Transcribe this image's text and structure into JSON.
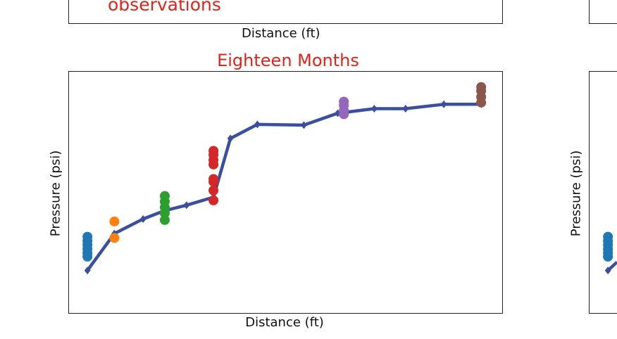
{
  "top_left_panel": {
    "annotation": "observations",
    "xlabel": "Distance (ft)"
  },
  "right_panel": {
    "ylabel": "Pressure (psi)"
  },
  "colors": {
    "model_line": "#3a4fa0",
    "observation_groups": [
      "#1f77b4",
      "#ff7f0e",
      "#2ca02c",
      "#d62728",
      "#9467bd",
      "#8c564b"
    ],
    "title": "#e2231a"
  },
  "chart_data": {
    "type": "line",
    "title": "Eighteen Months",
    "xlabel": "Distance (ft)",
    "ylabel": "Pressure (psi)",
    "xlim": [
      0,
      100
    ],
    "ylim": [
      0,
      100
    ],
    "grid": false,
    "ticks_shown": false,
    "model_line": {
      "x": [
        4.4,
        10.6,
        17.2,
        22.2,
        27.2,
        33.4,
        37.3,
        43.5,
        54.2,
        62.0,
        70.4,
        77.6,
        86.4,
        95.0
      ],
      "y": [
        17.8,
        33.0,
        39.0,
        42.5,
        44.7,
        48.0,
        72.2,
        78.0,
        77.7,
        82.6,
        84.5,
        84.5,
        86.3,
        86.3
      ]
    },
    "observations": [
      {
        "x": 4.4,
        "y": [
          23.5,
          25.0,
          26.7,
          28.4,
          30.0,
          31.7
        ]
      },
      {
        "x": 10.6,
        "y": [
          31.2,
          38.0
        ]
      },
      {
        "x": 22.2,
        "y": [
          38.6,
          41.4,
          43.8,
          46.2,
          48.5
        ]
      },
      {
        "x": 33.4,
        "y": [
          46.7,
          50.8,
          54.4,
          55.5,
          61.5,
          63.3,
          65.5,
          67.1
        ]
      },
      {
        "x": 63.4,
        "y": [
          82.2,
          83.8,
          85.8,
          87.4
        ]
      },
      {
        "x": 95.0,
        "y": [
          87.0,
          89.3,
          91.8,
          93.4
        ]
      }
    ]
  }
}
